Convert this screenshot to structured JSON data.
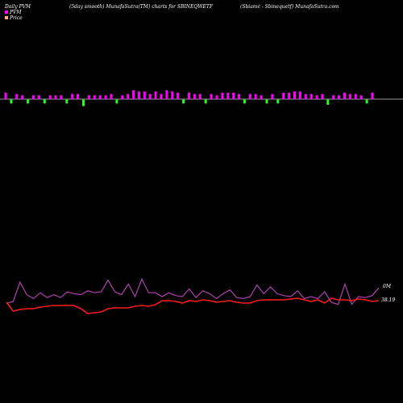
{
  "header": {
    "left": "Daily PVM",
    "center": "(5day smooth) MunafaSutra(TM) charts for SBINEQWETF",
    "right": "(Sbiamc - Sbinequetf) MunafaSutra.com"
  },
  "colors": {
    "background": "#000000",
    "bar_up": "#ff00ff",
    "bar_down": "#22ff22",
    "bar_neutral": "#cc0066",
    "baseline": "#cccccc",
    "pvm_line": "#b040b0",
    "price_line": "#ff1a1a",
    "pvm_legend": "#ff00ff",
    "price_legend": "#ffaa88"
  },
  "chart_data": {
    "type": "line",
    "title": "Daily PVM",
    "legend": [
      "PVM",
      "Price"
    ],
    "legend_position": "top-left",
    "grid": false,
    "bars": {
      "name": "PVM",
      "values": [
        5,
        -3,
        4,
        3,
        -3,
        3,
        3,
        -3,
        3,
        3,
        3,
        -3,
        4,
        4,
        -5,
        3,
        3,
        3,
        3,
        4,
        -3,
        3,
        4,
        7,
        6,
        6,
        4,
        6,
        4,
        7,
        6,
        5,
        -3,
        5,
        4,
        4,
        -3,
        4,
        3,
        5,
        5,
        5,
        4,
        -3,
        4,
        4,
        3,
        -3,
        4,
        -3,
        5,
        5,
        6,
        6,
        4,
        4,
        3,
        4,
        -4,
        3,
        3,
        5,
        4,
        4,
        3,
        -3,
        5
      ]
    },
    "series": [
      {
        "name": "PVM",
        "values": [
          0.3,
          0.5,
          2.5,
          1.2,
          0.8,
          1.4,
          0.9,
          1.2,
          0.9,
          1.5,
          1.3,
          1.2,
          1.6,
          1.4,
          1.5,
          2.7,
          1.5,
          1.2,
          2.3,
          1.0,
          2.8,
          1.4,
          1.4,
          1.0,
          1.4,
          1.1,
          1.0,
          1.8,
          0.9,
          1.6,
          1.3,
          0.8,
          1.3,
          1.7,
          0.9,
          0.8,
          1.0,
          2.2,
          1.3,
          2.0,
          1.3,
          1.1,
          1.0,
          1.6,
          0.8,
          1.0,
          0.8,
          1.5,
          0.4,
          0.2,
          2.3,
          0.2,
          1.0,
          0.9,
          1.1,
          1.9
        ]
      },
      {
        "name": "Price",
        "values": [
          0.45,
          -0.1,
          0.0,
          0.05,
          0.05,
          0.15,
          0.2,
          0.25,
          0.25,
          0.25,
          0.25,
          0.05,
          -0.25,
          -0.2,
          -0.15,
          0.05,
          0.1,
          0.1,
          0.1,
          0.2,
          0.25,
          0.2,
          0.3,
          0.55,
          0.55,
          0.5,
          0.4,
          0.55,
          0.5,
          0.6,
          0.55,
          0.45,
          0.5,
          0.55,
          0.45,
          0.4,
          0.4,
          0.55,
          0.6,
          0.6,
          0.6,
          0.6,
          0.65,
          0.7,
          0.6,
          0.5,
          0.6,
          0.4,
          0.7,
          0.6,
          0.6,
          0.55,
          0.65,
          0.6,
          0.5,
          0.55
        ]
      }
    ],
    "labels": {
      "pvm_last": "0M",
      "price_last": "38.19"
    }
  }
}
